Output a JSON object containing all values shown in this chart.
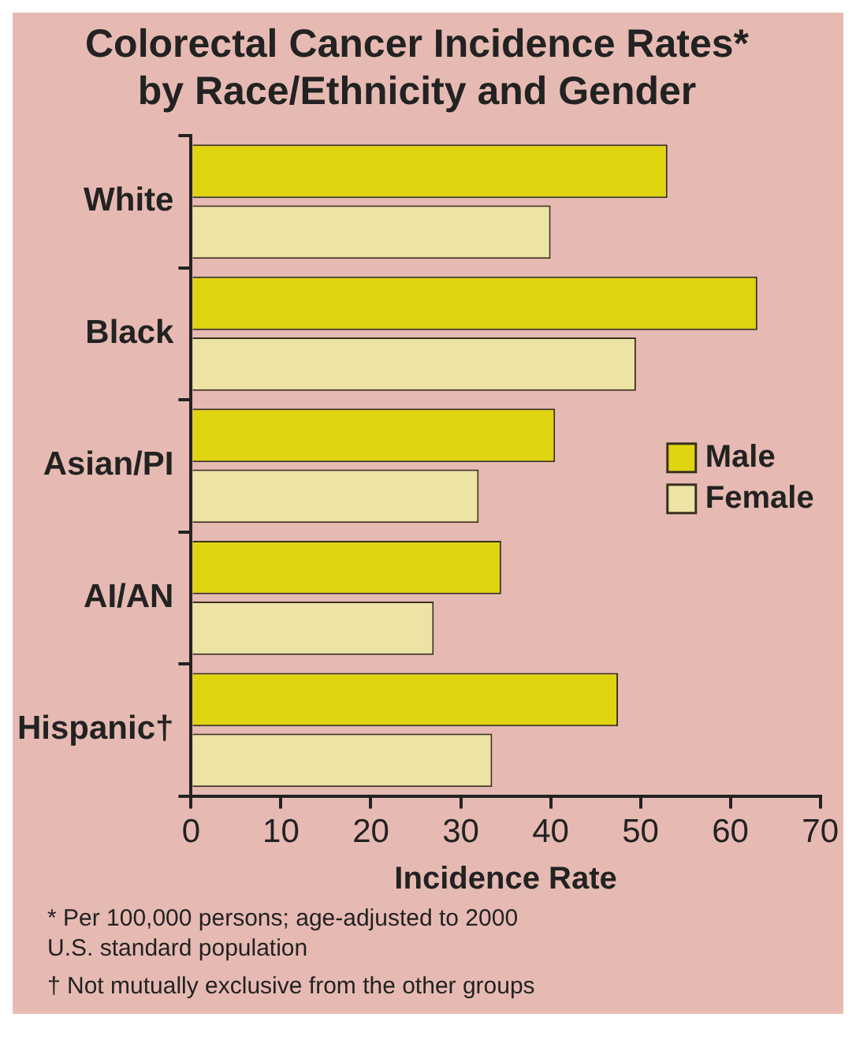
{
  "chart_data": {
    "type": "bar",
    "orientation": "horizontal",
    "title": "Colorectal Cancer Incidence Rates*\nby Race/Ethnicity and Gender",
    "xlabel": "Incidence Rate",
    "categories": [
      "White",
      "Black",
      "Asian/PI",
      "AI/AN",
      "Hispanic†"
    ],
    "series": [
      {
        "name": "Male",
        "color": "#e0d410",
        "values": [
          53,
          63,
          40.5,
          34.5,
          47.5
        ]
      },
      {
        "name": "Female",
        "color": "#ede3a4",
        "values": [
          40,
          49.5,
          32,
          27,
          33.5
        ]
      }
    ],
    "xlim": [
      0,
      70
    ],
    "xticks": [
      0,
      10,
      20,
      30,
      40,
      50,
      60,
      70
    ],
    "grid": false,
    "legend": "right",
    "annotations": [
      "* Per 100,000 persons; age-adjusted to 2000\nU.S. standard population",
      "† Not mutually exclusive from the other groups"
    ]
  }
}
